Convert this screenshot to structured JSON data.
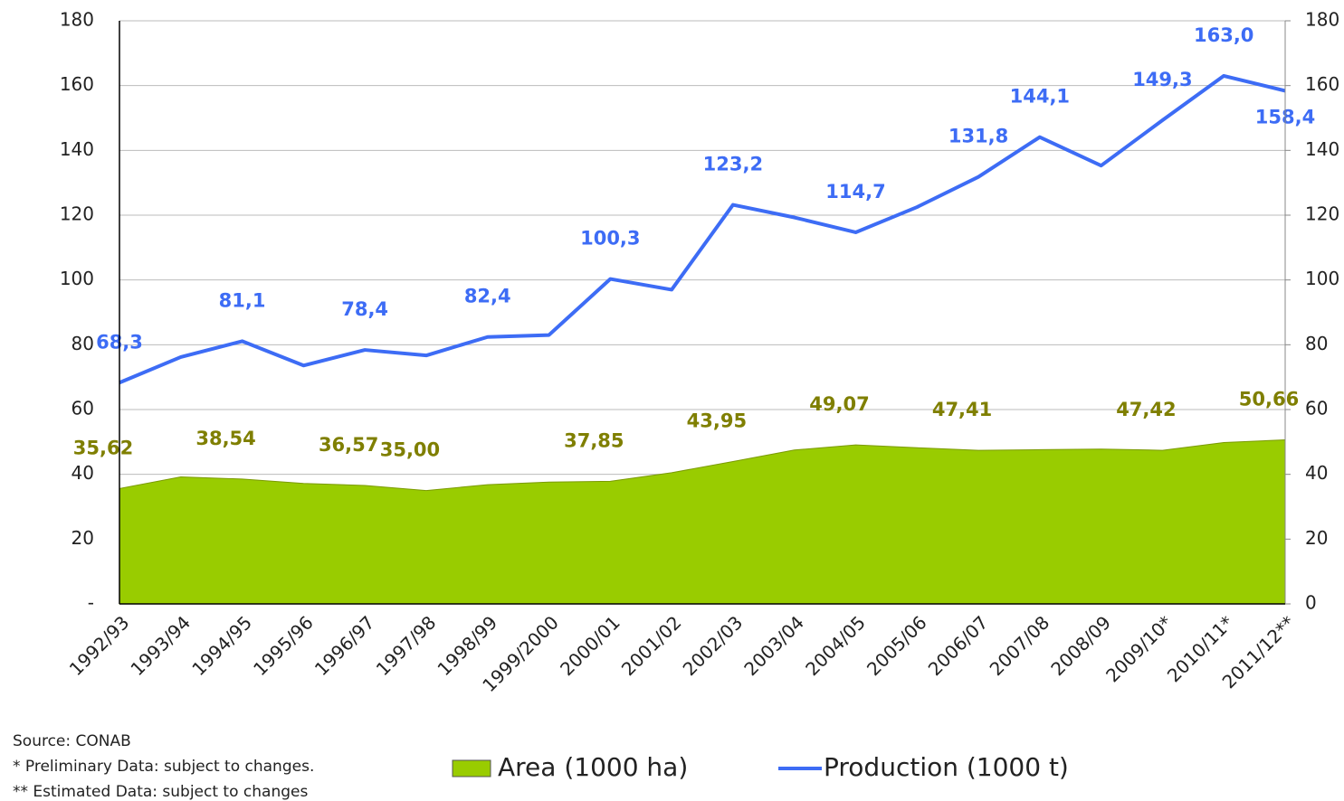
{
  "chart_data": {
    "type": "area-line",
    "categories": [
      "1992/93",
      "1993/94",
      "1994/95",
      "1995/96",
      "1996/97",
      "1997/98",
      "1998/99",
      "1999/2000",
      "2000/01",
      "2001/02",
      "2002/03",
      "2003/04",
      "2004/05",
      "2005/06",
      "2006/07",
      "2007/08",
      "2008/09",
      "2009/10*",
      "2010/11*",
      "2011/12**"
    ],
    "series": [
      {
        "name": "Area (1000 ha)",
        "color": "#99cc00",
        "label_color": "#7f7f00",
        "type": "area",
        "values": [
          35.62,
          39.2,
          38.54,
          37.2,
          36.57,
          35.0,
          36.8,
          37.6,
          37.85,
          40.5,
          43.95,
          47.5,
          49.07,
          48.2,
          47.41,
          47.6,
          47.8,
          47.42,
          49.8,
          50.66
        ],
        "value_labels": [
          "35,62",
          null,
          "38,54",
          null,
          "36,57",
          "35,00",
          null,
          null,
          "37,85",
          null,
          "43,95",
          null,
          "49,07",
          null,
          "47,41",
          null,
          null,
          "47,42",
          null,
          "50,66"
        ]
      },
      {
        "name": "Production (1000 t)",
        "color": "#3d6cf5",
        "label_color": "#3d6cf5",
        "type": "line",
        "axis": "y2",
        "values": [
          68.3,
          76.2,
          81.1,
          73.6,
          78.4,
          76.7,
          82.4,
          83.0,
          100.3,
          97.0,
          123.2,
          119.3,
          114.7,
          122.5,
          131.8,
          144.1,
          135.3,
          149.3,
          163.0,
          158.4
        ],
        "value_labels": [
          "68,3",
          null,
          "81,1",
          null,
          "78,4",
          null,
          "82,4",
          null,
          "100,3",
          null,
          "123,2",
          null,
          "114,7",
          null,
          "131,8",
          "144,1",
          null,
          "149,3",
          "163,0",
          "158,4"
        ]
      }
    ],
    "ylim": [
      0,
      180
    ],
    "yticks": [
      {
        "value": 0,
        "label": "-"
      },
      20,
      40,
      60,
      80,
      100,
      120,
      140,
      160,
      180
    ],
    "y2lim": [
      0,
      180
    ],
    "y2ticks": [
      0,
      20,
      40,
      60,
      80,
      100,
      120,
      140,
      160,
      180
    ],
    "grid": true,
    "legend": "bottom",
    "notes": [
      "Source: CONAB",
      "* Preliminary Data: subject to changes.",
      "** Estimated Data: subject to changes"
    ]
  }
}
